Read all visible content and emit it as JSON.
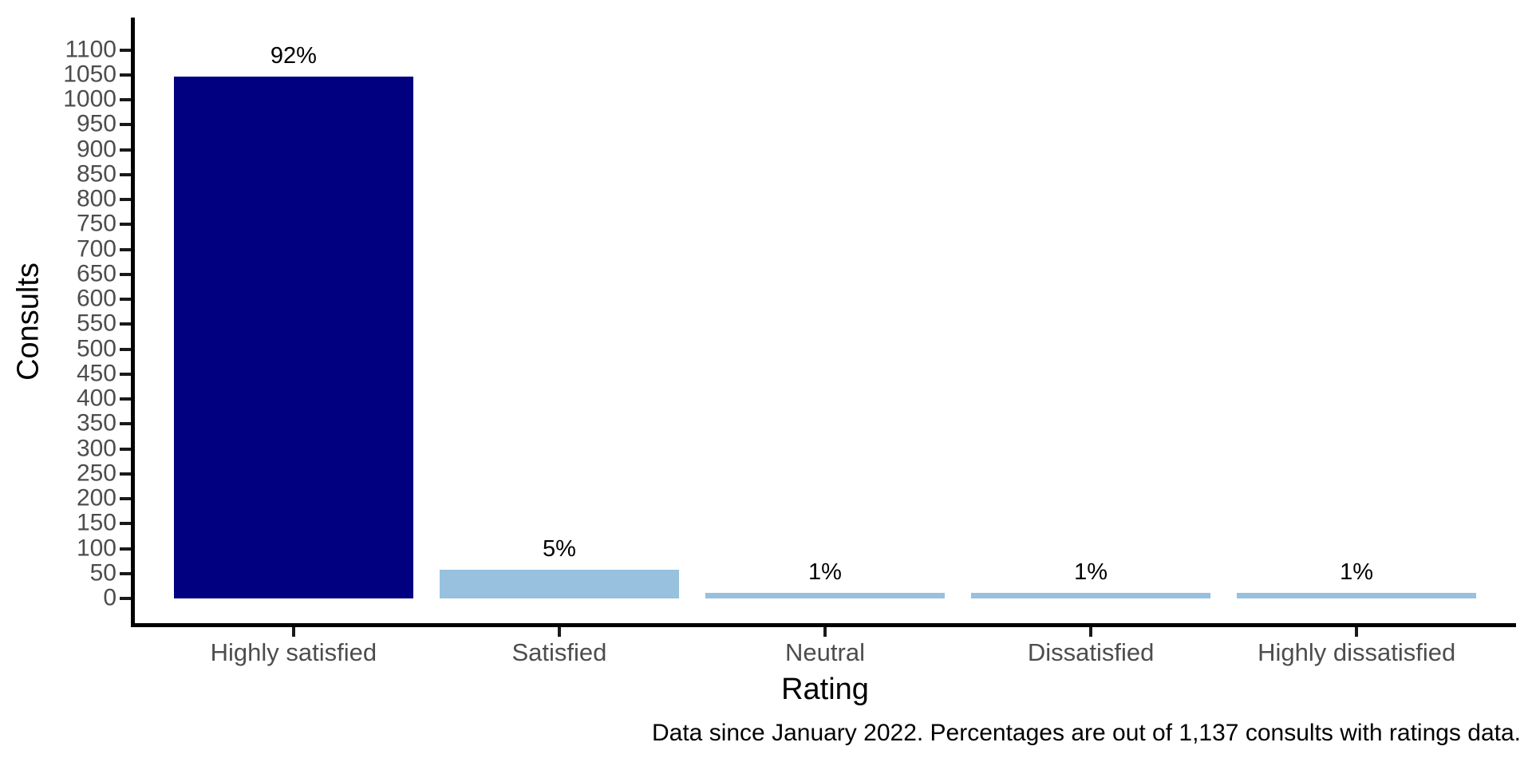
{
  "chart_data": {
    "type": "bar",
    "categories": [
      "Highly satisfied",
      "Satisfied",
      "Neutral",
      "Dissatisfied",
      "Highly dissatisfied"
    ],
    "values": [
      1046,
      57,
      11,
      11,
      11
    ],
    "bar_labels": [
      "92%",
      "5%",
      "1%",
      "1%",
      "1%"
    ],
    "bar_colors": [
      "#000080",
      "#97C1DE",
      "#97C1DE",
      "#97C1DE",
      "#97C1DE"
    ],
    "title": "",
    "xlabel": "Rating",
    "ylabel": "Consults",
    "ylim": [
      0,
      1155
    ],
    "yticks_start": 0,
    "yticks_end": 1100,
    "yticks_step": 50,
    "grid": false,
    "legend": false,
    "caption": "Data since January 2022. Percentages are out of 1,137 consults with ratings data.",
    "axis_text_color": "#4d4d4d",
    "axis_title_color": "#000000",
    "total_consults": "1,137"
  }
}
